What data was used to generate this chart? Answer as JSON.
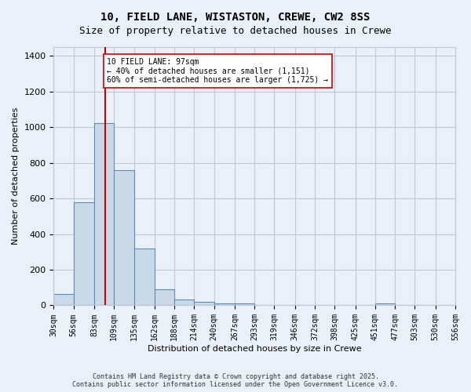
{
  "title_line1": "10, FIELD LANE, WISTASTON, CREWE, CW2 8SS",
  "title_line2": "Size of property relative to detached houses in Crewe",
  "xlabel": "Distribution of detached houses by size in Crewe",
  "ylabel": "Number of detached properties",
  "bar_edges": [
    30,
    56,
    83,
    109,
    135,
    162,
    188,
    214,
    240,
    267,
    293,
    319,
    346,
    372,
    398,
    425,
    451,
    477,
    503,
    530,
    556
  ],
  "bar_heights": [
    65,
    580,
    1025,
    760,
    320,
    90,
    35,
    20,
    10,
    10,
    0,
    0,
    0,
    0,
    0,
    0,
    10,
    0,
    0,
    0
  ],
  "bar_color": "#c9d9e8",
  "bar_edge_color": "#5b8db8",
  "grid_color": "#c0c8d8",
  "background_color": "#eaf0f8",
  "vline_x": 97,
  "vline_color": "#cc0000",
  "annotation_text": "10 FIELD LANE: 97sqm\n← 40% of detached houses are smaller (1,151)\n60% of semi-detached houses are larger (1,725) →",
  "annotation_box_color": "#ffffff",
  "annotation_box_edge": "#cc0000",
  "ylim": [
    0,
    1450
  ],
  "yticks": [
    0,
    200,
    400,
    600,
    800,
    1000,
    1200,
    1400
  ],
  "tick_labels": [
    "30sqm",
    "56sqm",
    "83sqm",
    "109sqm",
    "135sqm",
    "162sqm",
    "188sqm",
    "214sqm",
    "240sqm",
    "267sqm",
    "293sqm",
    "319sqm",
    "346sqm",
    "372sqm",
    "398sqm",
    "425sqm",
    "451sqm",
    "477sqm",
    "503sqm",
    "530sqm",
    "556sqm"
  ],
  "footer_text": "Contains HM Land Registry data © Crown copyright and database right 2025.\nContains public sector information licensed under the Open Government Licence v3.0.",
  "figsize": [
    6.0,
    5.0
  ],
  "dpi": 100
}
